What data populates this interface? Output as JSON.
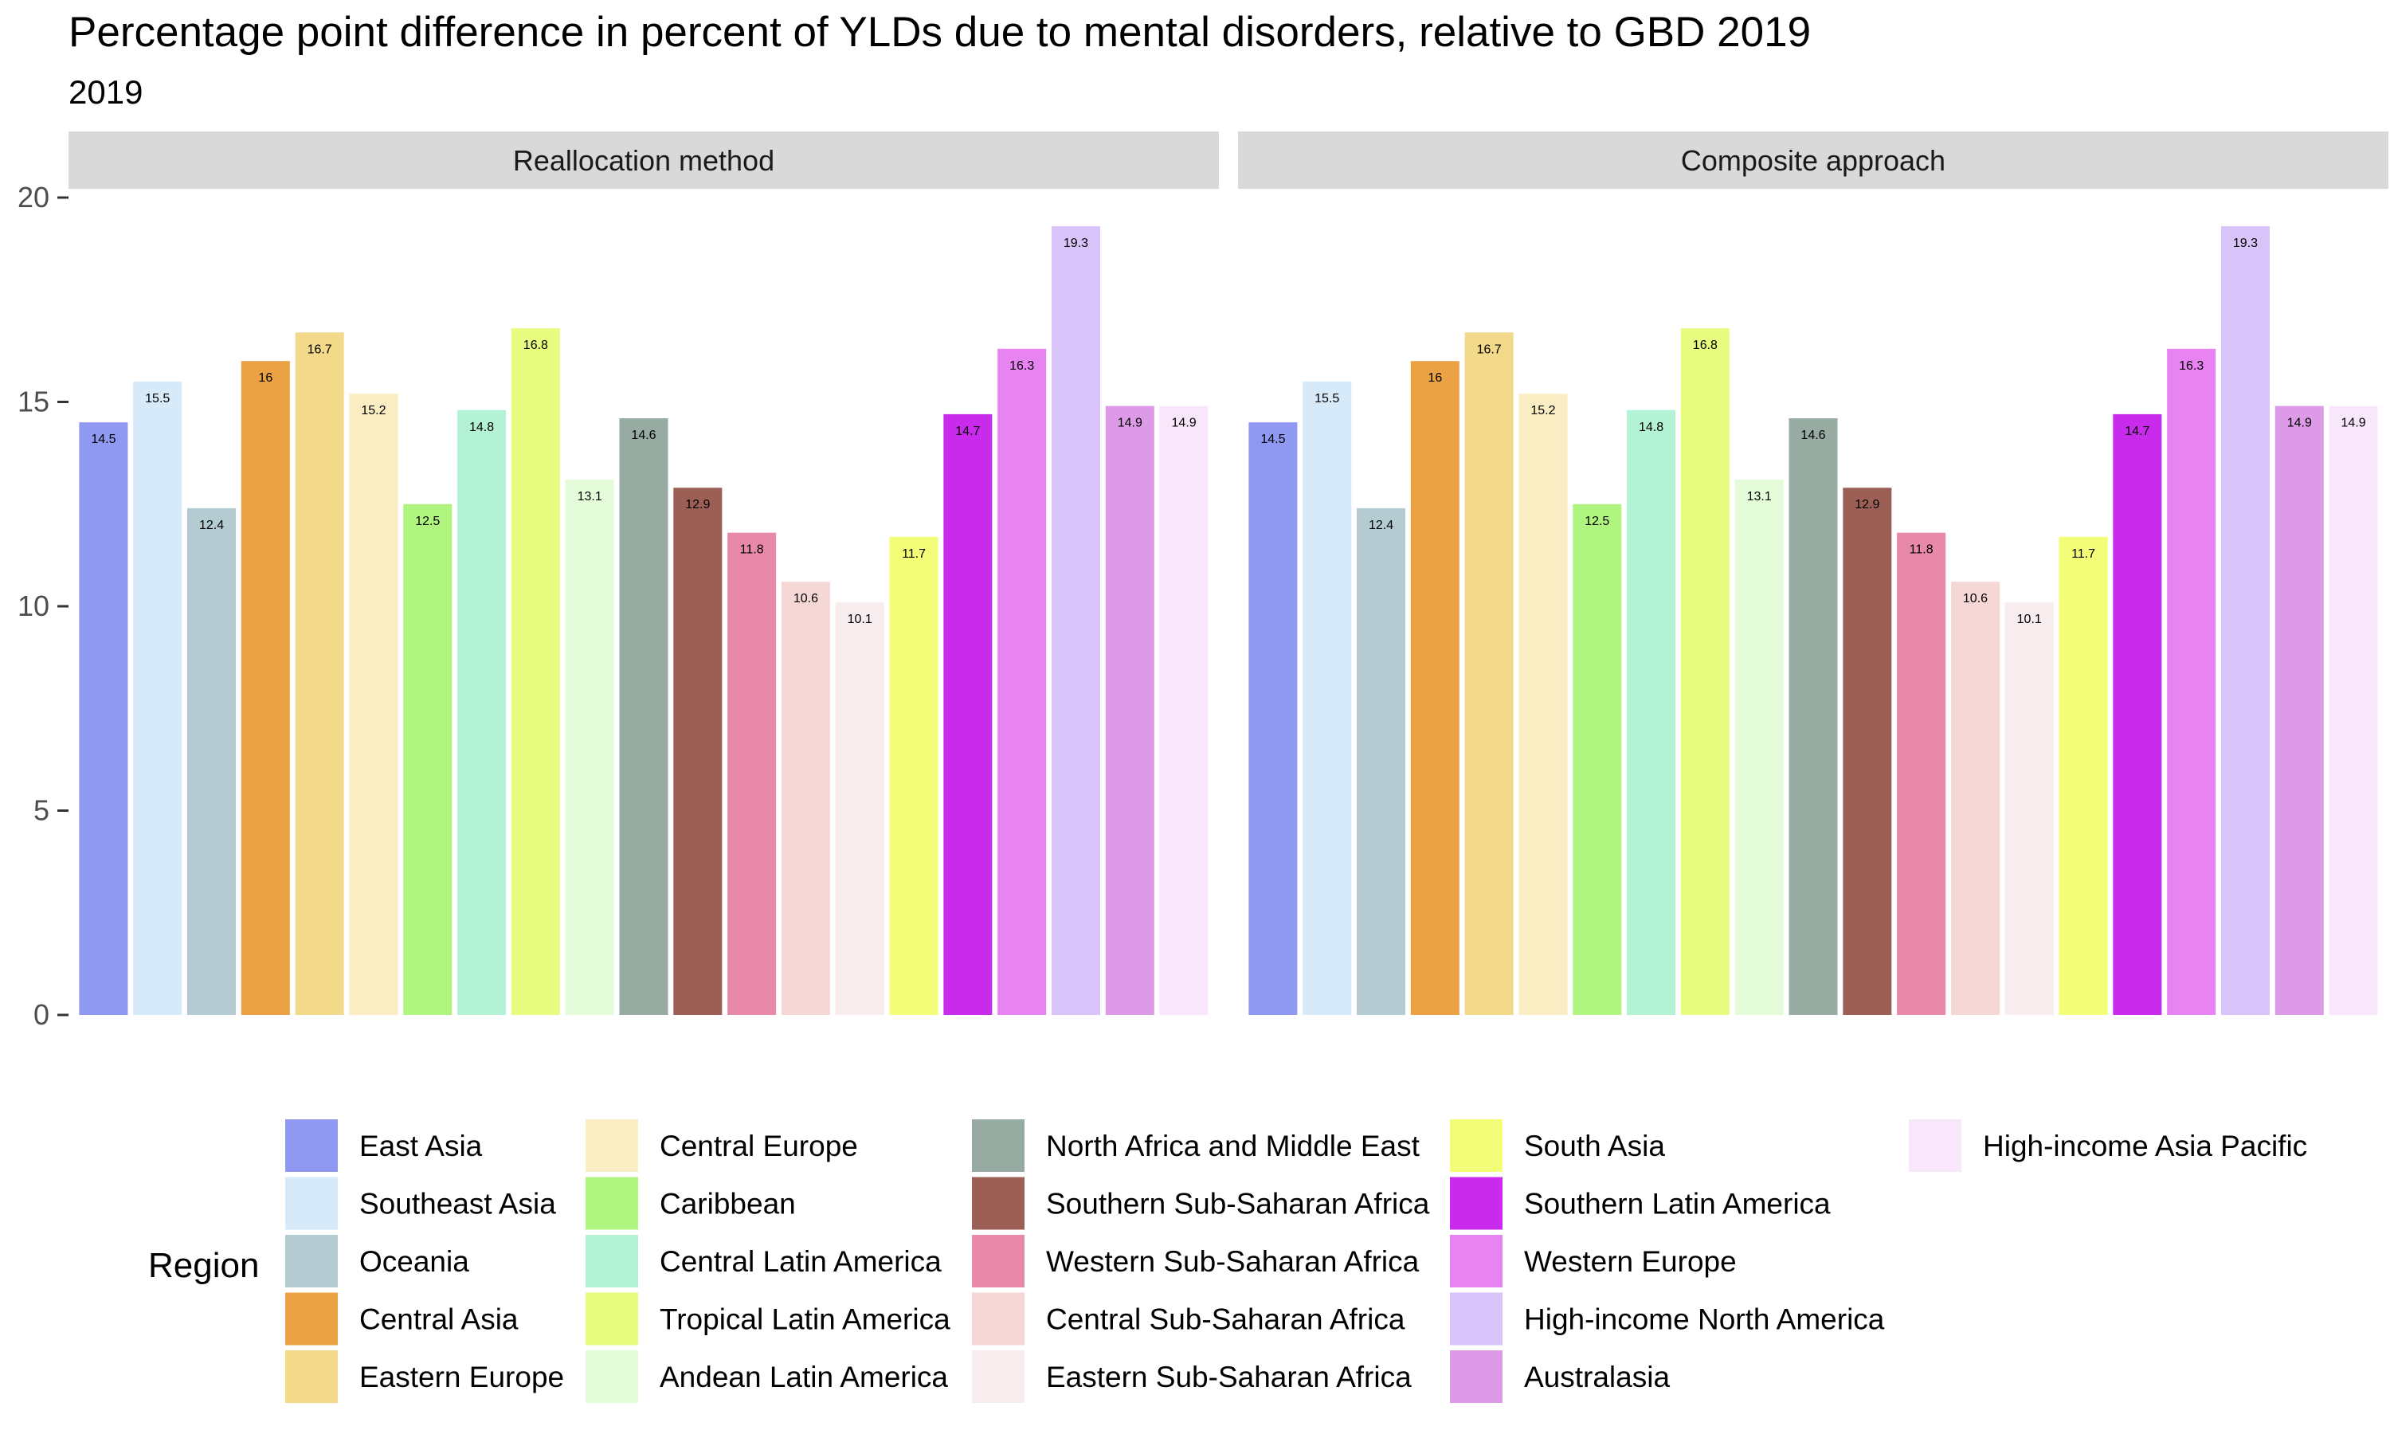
{
  "chart_data": {
    "type": "bar",
    "title": "Percentage point difference in percent of YLDs due to mental disorders, relative to GBD 2019",
    "subtitle": "2019",
    "xlabel": "",
    "ylabel": "",
    "ylim": [
      0,
      20
    ],
    "y_ticks": [
      0,
      5,
      10,
      15,
      20
    ],
    "grid": false,
    "legend_title": "Region",
    "legend_position": "bottom",
    "categories": [
      "East Asia",
      "Southeast Asia",
      "Oceania",
      "Central Asia",
      "Eastern Europe",
      "Central Europe",
      "Caribbean",
      "Central Latin America",
      "Tropical Latin America",
      "Andean Latin America",
      "North Africa and Middle East",
      "Southern Sub-Saharan Africa",
      "Western Sub-Saharan Africa",
      "Central Sub-Saharan Africa",
      "Eastern Sub-Saharan Africa",
      "South Asia",
      "Southern Latin America",
      "Western Europe",
      "High-income North America",
      "Australasia",
      "High-income Asia Pacific"
    ],
    "colors": [
      "#8F99F2",
      "#D6EAFA",
      "#B4CBD2",
      "#EAA245",
      "#F3D98A",
      "#FAEDC4",
      "#B0F580",
      "#B4F2D6",
      "#E8FD80",
      "#E4FCD9",
      "#97ABA2",
      "#9C5F56",
      "#E889A9",
      "#F5D7D5",
      "#F7EDEF",
      "#F3FD78",
      "#C92BEC",
      "#E784F2",
      "#D8C4F8",
      "#DD9AE6",
      "#F8E6FA"
    ],
    "value_labels": [
      "14.5",
      "15.5",
      "12.4",
      "16",
      "16.7",
      "15.2",
      "12.5",
      "14.8",
      "16.8",
      "13.1",
      "14.6",
      "12.9",
      "11.8",
      "10.6",
      "10.1",
      "11.7",
      "14.7",
      "16.3",
      "19.3",
      "14.9",
      "14.9"
    ],
    "panels": [
      {
        "name": "Reallocation method",
        "values": [
          14.5,
          15.5,
          12.4,
          16,
          16.7,
          15.2,
          12.5,
          14.8,
          16.8,
          13.1,
          14.6,
          12.9,
          11.8,
          10.6,
          10.1,
          11.7,
          14.7,
          16.3,
          19.3,
          14.9,
          14.9
        ]
      },
      {
        "name": "Composite approach",
        "values": [
          14.5,
          15.5,
          12.4,
          16,
          16.7,
          15.2,
          12.5,
          14.8,
          16.8,
          13.1,
          14.6,
          12.9,
          11.8,
          10.6,
          10.1,
          11.7,
          14.7,
          16.3,
          19.3,
          14.9,
          14.9
        ]
      }
    ]
  }
}
